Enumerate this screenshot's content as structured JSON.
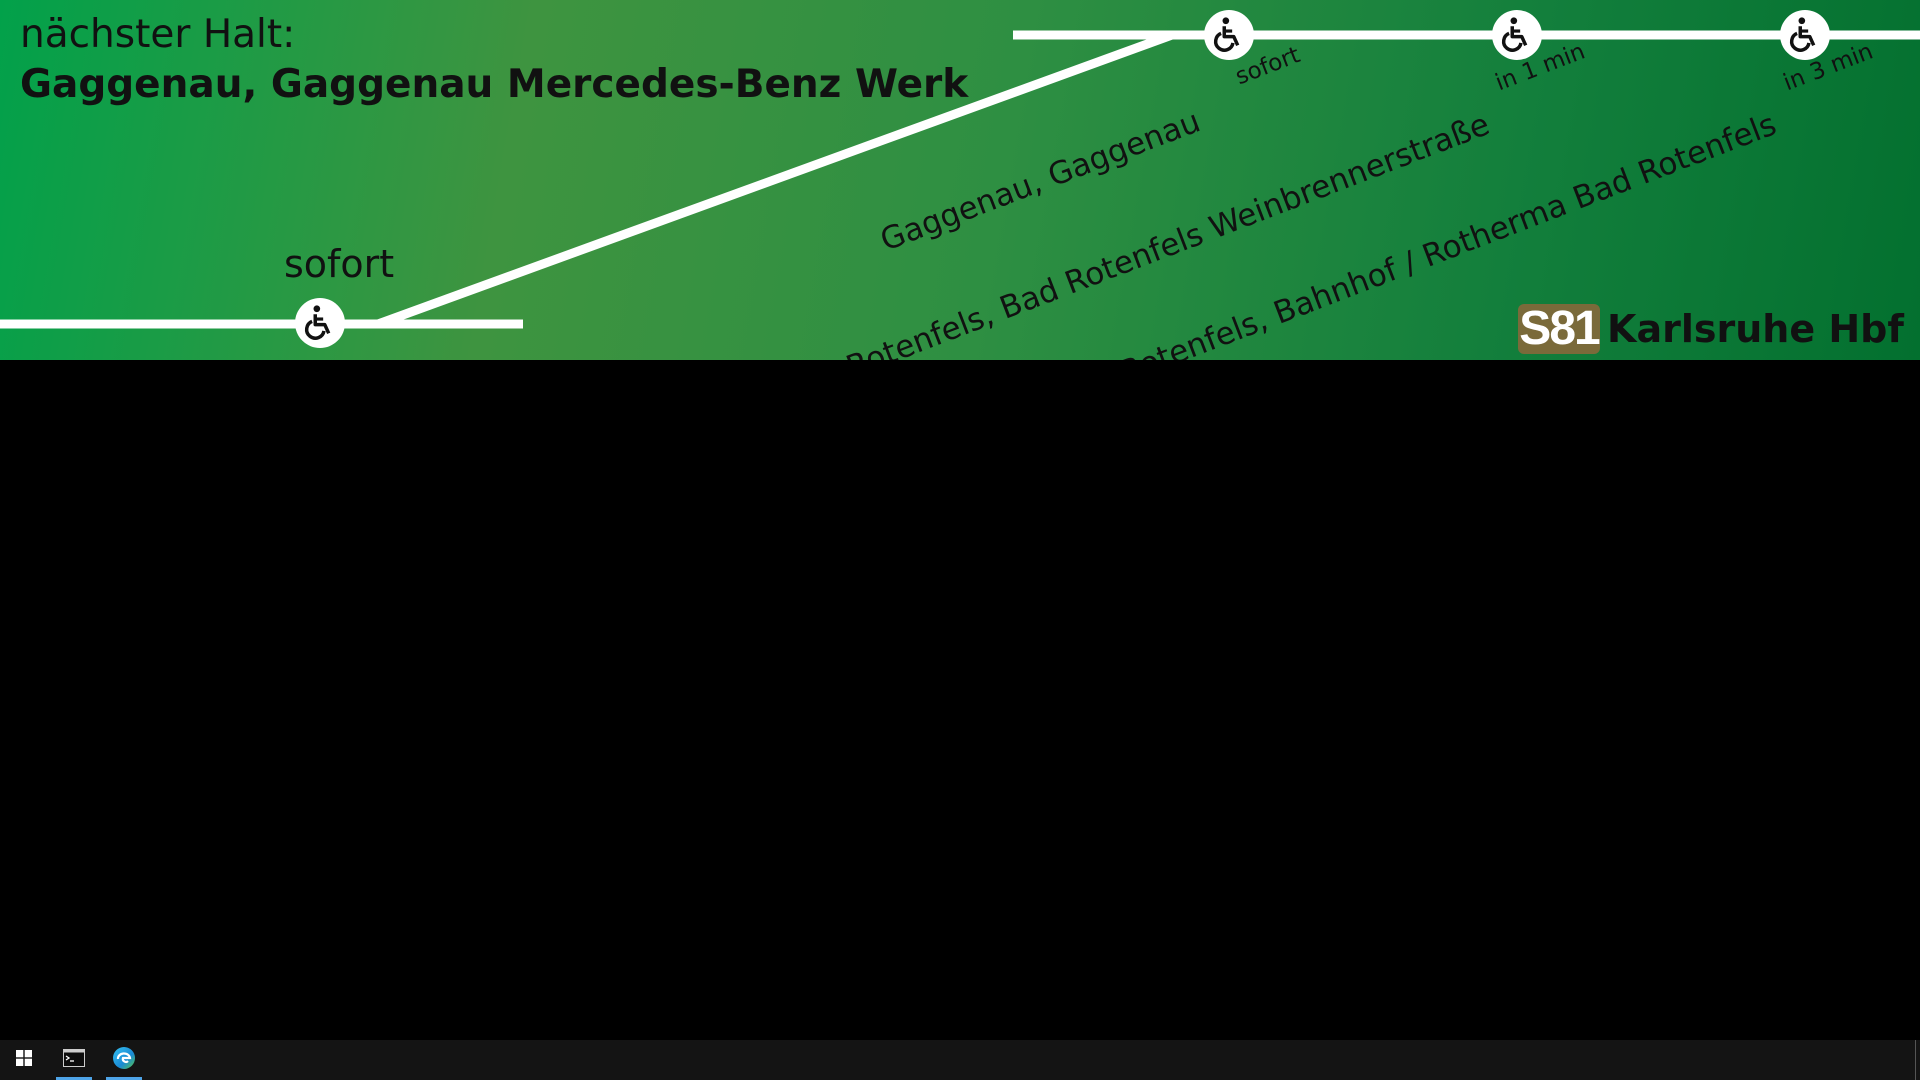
{
  "header": {
    "label": "nächster Halt:",
    "stop": "Gaggenau, Gaggenau Mercedes-Benz Werk"
  },
  "current_stop": {
    "eta": "sofort",
    "icon": "wheelchair-icon"
  },
  "upcoming_stops": [
    {
      "name": "Gaggenau, Gaggenau",
      "eta": "sofort",
      "icon": "wheelchair-icon"
    },
    {
      "name": "Bad Rotenfels, Bad Rotenfels Weinbrennerstraße",
      "eta": "in 1 min",
      "icon": "wheelchair-icon"
    },
    {
      "name": "Bad Rotenfels, Bahnhof / Rotherma Bad Rotenfels",
      "eta": "in 3 min",
      "icon": "wheelchair-icon"
    }
  ],
  "line": {
    "number": "S81",
    "destination": "Karlsruhe Hbf",
    "badge_color": "#7a6a3a"
  },
  "colors": {
    "banner_start": "#02a14a",
    "banner_end": "#03702f",
    "route_line": "#ffffff"
  },
  "taskbar": {
    "items": [
      {
        "icon": "windows-start-icon"
      },
      {
        "icon": "terminal-icon"
      },
      {
        "icon": "edge-browser-icon"
      }
    ]
  }
}
